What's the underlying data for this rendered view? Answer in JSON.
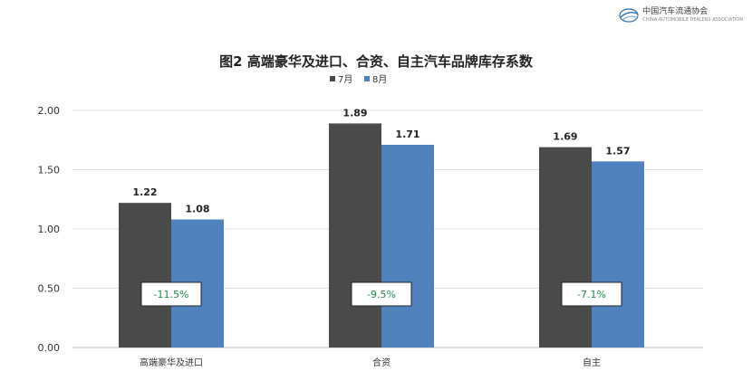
{
  "logo": {
    "name": "中国汽车流通协会",
    "subtitle": "CHINA AUTOMOBILE DEALERS ASSOCIATION"
  },
  "chart_data": {
    "type": "bar",
    "title": "图2  高端豪华及进口、合资、自主汽车品牌库存系数",
    "categories": [
      "高端豪华及进口",
      "合资",
      "自主"
    ],
    "series": [
      {
        "name": "7月",
        "values": [
          1.22,
          1.89,
          1.69
        ],
        "color": "#4a4a4a"
      },
      {
        "name": "8月",
        "values": [
          1.08,
          1.71,
          1.57
        ],
        "color": "#4f81bd"
      }
    ],
    "annotations": [
      "-11.5%",
      "-9.5%",
      "-7.1%"
    ],
    "annotation_color": "#1e8b4a",
    "ylim": [
      0,
      2.0
    ],
    "yticks": [
      "0.00",
      "0.50",
      "1.00",
      "1.50",
      "2.00"
    ],
    "legend_position": "top-center",
    "grid": true,
    "xlabel": "",
    "ylabel": ""
  }
}
